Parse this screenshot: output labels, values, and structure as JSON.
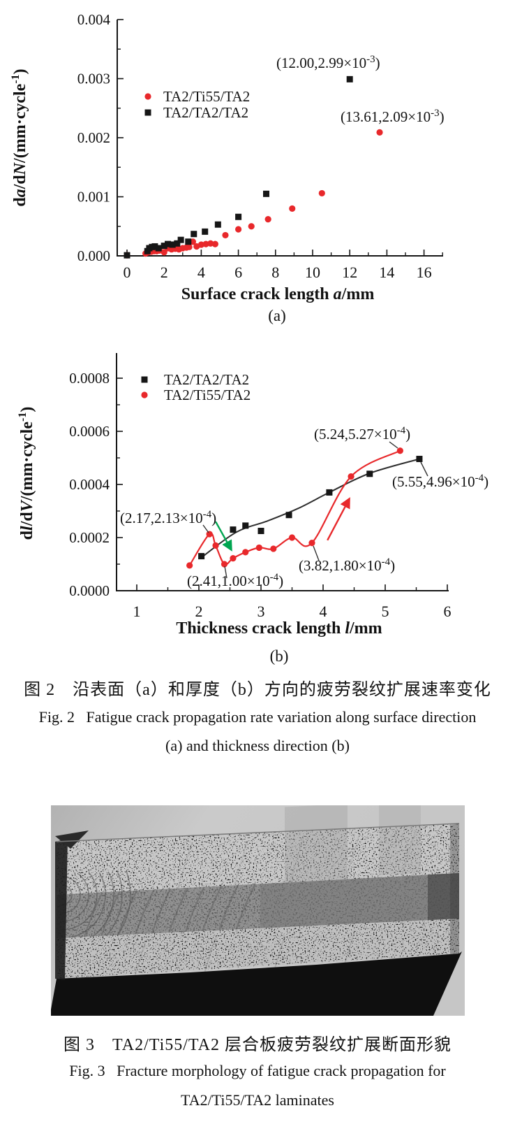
{
  "colors": {
    "red": "#e8282b",
    "black": "#161616",
    "green": "#00a550",
    "curve_black": "#2d2d2d"
  },
  "figure2": {
    "panel_a": {
      "sub_label": "(a)",
      "ylabel": {
        "pre": "d",
        "var1": "a",
        "mid": "/d",
        "var2": "N",
        "post": "/(mm·cycle",
        "sup": "-1",
        "end": ")"
      },
      "xlabel": {
        "pre": "Surface crack length ",
        "var": "a",
        "post": "/mm"
      }
    },
    "panel_b": {
      "sub_label": "(b)",
      "ylabel": {
        "pre": "d",
        "var1": "l",
        "mid": "/d",
        "var2": "V",
        "post": "/(mm·cycle",
        "sup": "-1",
        "end": ")"
      },
      "xlabel": {
        "pre": "Thickness crack length ",
        "var": "l",
        "post": "/mm"
      }
    },
    "caption_zh": "图 2　沿表面（a）和厚度（b）方向的疲劳裂纹扩展速率变化",
    "caption_en_1": "Fig. 2   Fatigue crack propagation rate variation along surface direction",
    "caption_en_2": "(a) and thickness direction (b)"
  },
  "figure3": {
    "caption_zh": "图 3　TA2/Ti55/TA2 层合板疲劳裂纹扩展断面形貌",
    "caption_en_1": "Fig. 3   Fracture morphology of fatigue crack propagation for",
    "caption_en_2": "TA2/Ti55/TA2 laminates"
  },
  "chart_data": [
    {
      "type": "scatter",
      "panel": "(a)",
      "xlabel": "Surface crack length a/mm",
      "ylabel": "da/dN/(mm·cycle⁻¹)",
      "xlim": [
        0,
        17.2
      ],
      "ylim": [
        0,
        0.004
      ],
      "grid": false,
      "legend_position": "upper-left-inside",
      "x_ticks": {
        "major": [
          0,
          2,
          4,
          6,
          8,
          10,
          12,
          14,
          16
        ],
        "minor": [
          1,
          3,
          5,
          7,
          9,
          11,
          13,
          15,
          17
        ],
        "labels": [
          "0",
          "2",
          "4",
          "6",
          "8",
          "10",
          "12",
          "14",
          "16"
        ]
      },
      "y_ticks": {
        "major": [
          0,
          0.001,
          0.002,
          0.003,
          0.004
        ],
        "minor": [
          0.0005,
          0.0015,
          0.0025,
          0.0035
        ],
        "labels": [
          "0.000",
          "0.001",
          "0.002",
          "0.003",
          "0.004"
        ]
      },
      "series": [
        {
          "name": "TA2/Ti55/TA2",
          "marker": "circle",
          "color": "#e8282b",
          "points": [
            [
              0,
              1e-05
            ],
            [
              1.0,
              4e-05
            ],
            [
              1.15,
              6e-05
            ],
            [
              1.3,
              7e-05
            ],
            [
              1.45,
              8e-05
            ],
            [
              1.6,
              8e-05
            ],
            [
              1.75,
              9e-05
            ],
            [
              2.0,
              6e-05
            ],
            [
              2.2,
              0.00013
            ],
            [
              2.4,
              0.00011
            ],
            [
              2.6,
              0.00012
            ],
            [
              2.8,
              0.00011
            ],
            [
              3.0,
              0.00013
            ],
            [
              3.2,
              0.00014
            ],
            [
              3.35,
              0.00015
            ],
            [
              3.55,
              0.00024
            ],
            [
              3.75,
              0.00016
            ],
            [
              4.0,
              0.00019
            ],
            [
              4.25,
              0.0002
            ],
            [
              4.5,
              0.00021
            ],
            [
              4.75,
              0.0002
            ],
            [
              5.3,
              0.00035
            ],
            [
              6.0,
              0.00045
            ],
            [
              6.7,
              0.0005
            ],
            [
              7.6,
              0.00062
            ],
            [
              8.9,
              0.0008
            ],
            [
              10.5,
              0.00106
            ],
            [
              13.61,
              0.00209
            ]
          ]
        },
        {
          "name": "TA2/TA2/TA2",
          "marker": "square",
          "color": "#161616",
          "points": [
            [
              0,
              1e-05
            ],
            [
              1.1,
              8e-05
            ],
            [
              1.2,
              0.00013
            ],
            [
              1.35,
              0.00015
            ],
            [
              1.5,
              0.00016
            ],
            [
              1.7,
              0.00013
            ],
            [
              2.0,
              0.00017
            ],
            [
              2.2,
              0.0002
            ],
            [
              2.45,
              0.00019
            ],
            [
              2.7,
              0.00021
            ],
            [
              2.9,
              0.00027
            ],
            [
              3.3,
              0.00024
            ],
            [
              3.6,
              0.00037
            ],
            [
              4.2,
              0.00041
            ],
            [
              4.9,
              0.00053
            ],
            [
              6.0,
              0.00066
            ],
            [
              7.5,
              0.00105
            ],
            [
              12.0,
              0.00299
            ]
          ]
        }
      ],
      "annotations": [
        {
          "point": [
            12.0,
            0.00299
          ],
          "main": "(12.00,2.99×10",
          "sup": "-3",
          "end": ")"
        },
        {
          "point": [
            13.61,
            0.00209
          ],
          "main": "(13.61,2.09×10",
          "sup": "-3",
          "end": ")"
        }
      ]
    },
    {
      "type": "scatter",
      "panel": "(b)",
      "xlabel": "Thickness crack length l/mm",
      "ylabel": "dl/dV/(mm·cycle⁻¹)",
      "xlim": [
        0.7,
        6.05
      ],
      "ylim": [
        0,
        0.0009
      ],
      "grid": false,
      "legend_position": "upper-left-inside",
      "x_ticks": {
        "major": [
          1,
          2,
          3,
          4,
          5,
          6
        ],
        "minor": [
          1.5,
          2.5,
          3.5,
          4.5,
          5.5
        ],
        "labels": [
          "1",
          "2",
          "3",
          "4",
          "5",
          "6"
        ]
      },
      "y_ticks": {
        "major": [
          0,
          0.0002,
          0.0004,
          0.0006,
          0.0008
        ],
        "minor": [
          0.0001,
          0.0003,
          0.0005,
          0.0007
        ],
        "labels": [
          "0.0000",
          "0.0002",
          "0.0004",
          "0.0006",
          "0.0008"
        ]
      },
      "series": [
        {
          "name": "TA2/TA2/TA2",
          "marker": "square",
          "color": "#161616",
          "points": [
            [
              2.04,
              0.00013
            ],
            [
              2.55,
              0.00023
            ],
            [
              2.75,
              0.000245
            ],
            [
              3.0,
              0.000225
            ],
            [
              3.45,
              0.000285
            ],
            [
              4.1,
              0.00037
            ],
            [
              4.75,
              0.00044
            ],
            [
              5.55,
              0.000496
            ]
          ]
        },
        {
          "name": "TA2/Ti55/TA2",
          "marker": "circle",
          "color": "#e8282b",
          "points": [
            [
              1.85,
              9.5e-05
            ],
            [
              2.17,
              0.000213
            ],
            [
              2.27,
              0.00017
            ],
            [
              2.41,
              0.0001
            ],
            [
              2.55,
              0.000122
            ],
            [
              2.75,
              0.000145
            ],
            [
              2.97,
              0.000162
            ],
            [
              3.2,
              0.000158
            ],
            [
              3.5,
              0.0002
            ],
            [
              3.82,
              0.00018
            ],
            [
              4.45,
              0.00043
            ],
            [
              5.24,
              0.000527
            ]
          ]
        }
      ],
      "fit_curves": [
        {
          "series": "TA2/TA2/TA2",
          "color": "#2d2d2d",
          "width": 2,
          "points": [
            [
              2.04,
              0.000125
            ],
            [
              2.6,
              0.00022
            ],
            [
              3.1,
              0.000262
            ],
            [
              3.6,
              0.00031
            ],
            [
              4.1,
              0.00037
            ],
            [
              4.75,
              0.000442
            ],
            [
              5.55,
              0.000496
            ]
          ]
        },
        {
          "series": "TA2/Ti55/TA2",
          "color": "#e8282b",
          "width": 2.2,
          "points": [
            [
              1.85,
              9.5e-05
            ],
            [
              2.17,
              0.000213
            ],
            [
              2.27,
              0.00017
            ],
            [
              2.41,
              0.0001
            ],
            [
              2.55,
              0.000122
            ],
            [
              2.75,
              0.000145
            ],
            [
              2.97,
              0.000162
            ],
            [
              3.2,
              0.000158
            ],
            [
              3.5,
              0.0002
            ],
            [
              3.82,
              0.00018
            ],
            [
              4.45,
              0.00043
            ],
            [
              5.24,
              0.000527
            ]
          ]
        }
      ],
      "arrows": [
        {
          "color": "#00a550",
          "from": [
            2.27,
            0.00026
          ],
          "to": [
            2.52,
            0.000155
          ]
        },
        {
          "color": "#e8282b",
          "from": [
            4.07,
            0.00019
          ],
          "to": [
            4.42,
            0.000345
          ]
        }
      ],
      "annotations": [
        {
          "point": [
            2.17,
            0.000213
          ],
          "main": "(2.17,2.13×10",
          "sup": "-4",
          "end": ")"
        },
        {
          "point": [
            2.41,
            0.0001
          ],
          "main": "(2.41,1.00×10",
          "sup": "-4",
          "end": ")"
        },
        {
          "point": [
            3.82,
            0.00018
          ],
          "main": "(3.82,1.80×10",
          "sup": "-4",
          "end": ")"
        },
        {
          "point": [
            5.24,
            0.000527
          ],
          "main": "(5.24,5.27×10",
          "sup": "-4",
          "end": ")"
        },
        {
          "point": [
            5.55,
            0.000496
          ],
          "main": "(5.55,4.96×10",
          "sup": "-4",
          "end": ")"
        }
      ]
    }
  ]
}
